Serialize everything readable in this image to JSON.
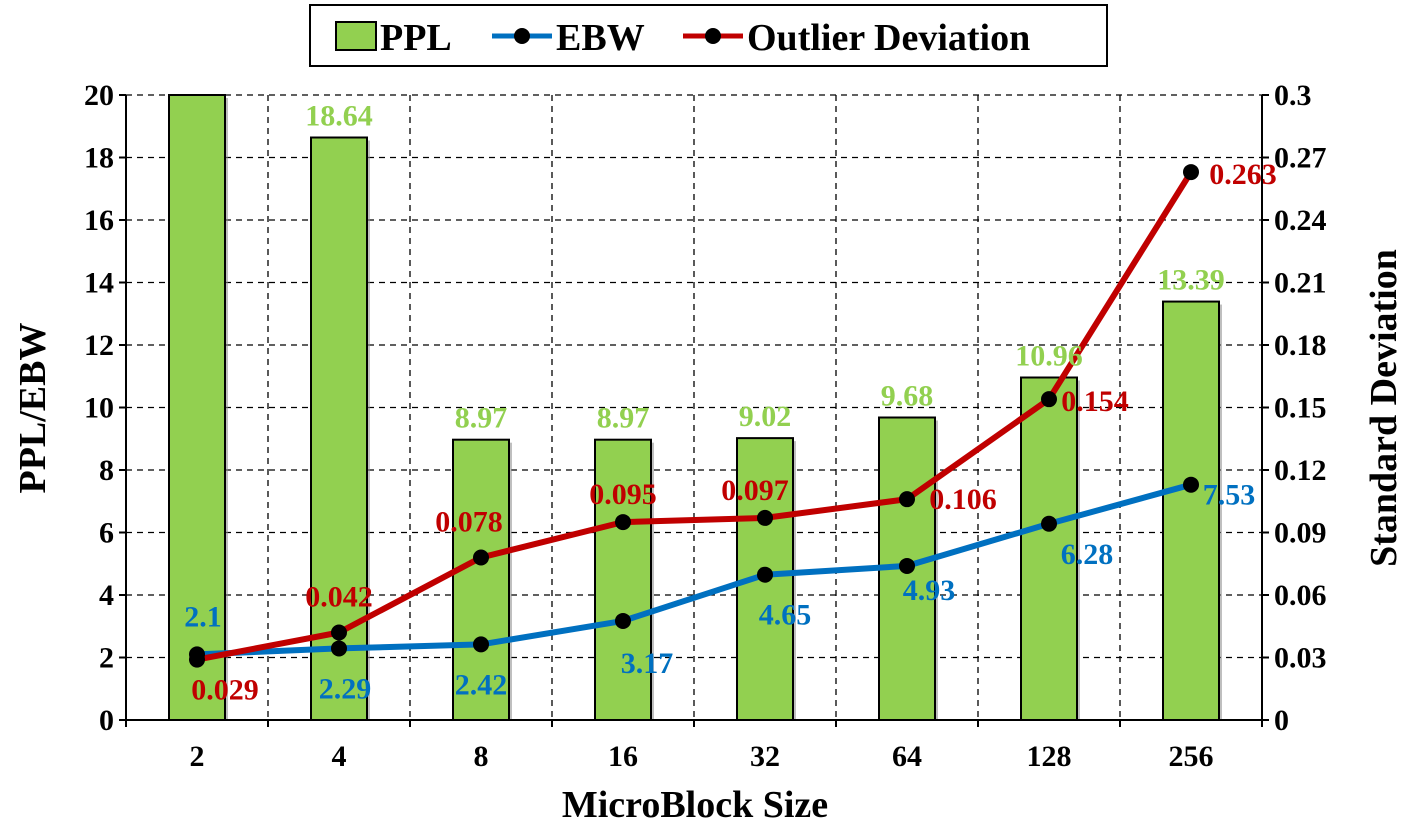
{
  "chart_data": {
    "type": "bar",
    "categories": [
      "2",
      "4",
      "8",
      "16",
      "32",
      "64",
      "128",
      "256"
    ],
    "series": [
      {
        "name": "PPL",
        "kind": "bar",
        "axis": "left",
        "color": "#92d050",
        "values": [
          20,
          18.64,
          8.97,
          8.97,
          9.02,
          9.68,
          10.96,
          13.39
        ],
        "labels": [
          "",
          "18.64",
          "8.97",
          "8.97",
          "9.02",
          "9.68",
          "10.96",
          "13.39"
        ]
      },
      {
        "name": "EBW",
        "kind": "line",
        "axis": "left",
        "color": "#0070c0",
        "values": [
          2.1,
          2.29,
          2.42,
          3.17,
          4.65,
          4.93,
          6.28,
          7.53
        ],
        "labels": [
          "2.1",
          "2.29",
          "2.42",
          "3.17",
          "4.65",
          "4.93",
          "6.28",
          "7.53"
        ]
      },
      {
        "name": "Outlier Deviation",
        "kind": "line",
        "axis": "right",
        "color": "#c00000",
        "values": [
          0.029,
          0.042,
          0.078,
          0.095,
          0.097,
          0.106,
          0.154,
          0.263
        ],
        "labels": [
          "0.029",
          "0.042",
          "0.078",
          "0.095",
          "0.097",
          "0.106",
          "0.154",
          "0.263"
        ]
      }
    ],
    "xlabel": "MicroBlock Size",
    "ylabel": "PPL/EBW",
    "y2label": "Standard Deviation",
    "ylim": [
      0,
      20
    ],
    "y2lim": [
      0,
      0.3
    ],
    "yticks": [
      "0",
      "2",
      "4",
      "6",
      "8",
      "10",
      "12",
      "14",
      "16",
      "18",
      "20"
    ],
    "y2ticks": [
      "0",
      "0.03",
      "0.06",
      "0.09",
      "0.12",
      "0.15",
      "0.18",
      "0.21",
      "0.24",
      "0.27",
      "0.3"
    ],
    "grid": true,
    "legend_position": "top-center"
  }
}
